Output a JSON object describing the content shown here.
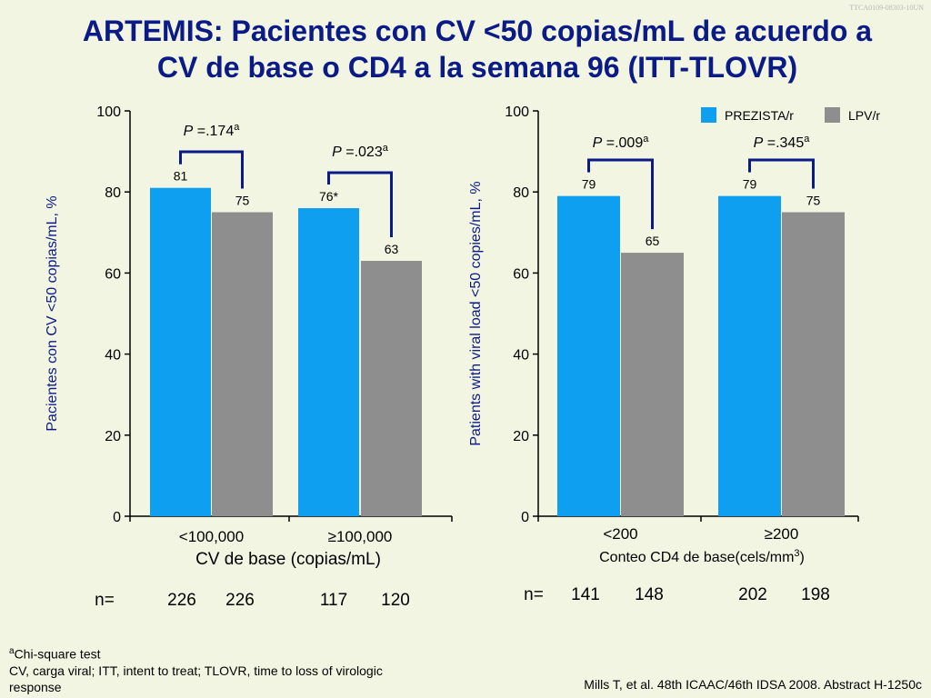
{
  "slide_code": "TTCA0109-08303-10UN",
  "title_line1": "ARTEMIS: Pacientes con CV <50 copias/mL de acuerdo a",
  "title_line2": "CV de base o CD4 a la semana 96 (ITT-TLOVR)",
  "colors": {
    "prezista": "#0f9ff0",
    "lpvr": "#8e8e8e",
    "bracket": "#0a1a86",
    "title": "#0a1a86"
  },
  "n_label": "n=",
  "chart_data": [
    {
      "type": "bar",
      "ylabel": "Pacientes con CV <50 copias/mL, %",
      "xlabel": "CV de base (copias/mL)",
      "ylim": [
        0,
        100
      ],
      "yticks": [
        "0",
        "20",
        "40",
        "60",
        "80",
        "100"
      ],
      "categories": [
        "<100,000",
        "≥100,000"
      ],
      "series": [
        {
          "name": "PREZISTA/r",
          "values": [
            81,
            76
          ],
          "labels": [
            "81",
            "76*"
          ]
        },
        {
          "name": "LPV/r",
          "values": [
            75,
            63
          ],
          "labels": [
            "75",
            "63"
          ]
        }
      ],
      "p_values": [
        {
          "p": "P",
          "value": " =.174",
          "sup": "a"
        },
        {
          "p": "P",
          "value": " =.023",
          "sup": "a"
        }
      ],
      "n": [
        [
          "226",
          "226"
        ],
        [
          "117",
          "120"
        ]
      ]
    },
    {
      "type": "bar",
      "ylabel": "Patients with viral load <50 copies/mL, %",
      "xlabel": "Conteo CD4 de base(cels/mm",
      "xlabel_sup": "3",
      "xlabel_end": ")",
      "ylim": [
        0,
        100
      ],
      "yticks": [
        "0",
        "20",
        "40",
        "60",
        "80",
        "100"
      ],
      "categories": [
        "<200",
        "≥200"
      ],
      "series": [
        {
          "name": "PREZISTA/r",
          "values": [
            79,
            79
          ],
          "labels": [
            "79",
            "79"
          ]
        },
        {
          "name": "LPV/r",
          "values": [
            65,
            75
          ],
          "labels": [
            "65",
            "75"
          ]
        }
      ],
      "legend": "top-right",
      "p_values": [
        {
          "p": "P",
          "value": " =.009",
          "sup": "a"
        },
        {
          "p": "P",
          "value": " =.345",
          "sup": "a"
        }
      ],
      "n": [
        [
          "141",
          "148"
        ],
        [
          "202",
          "198"
        ]
      ]
    }
  ],
  "footnote_sup": "a",
  "footnote_line1": "Chi-square test",
  "footnote_line2": "CV, carga viral; ITT, intent to treat; TLOVR, time to loss of virologic response",
  "citation": "Mills T, et al. 48th ICAAC/46th IDSA 2008. Abstract H-1250c"
}
